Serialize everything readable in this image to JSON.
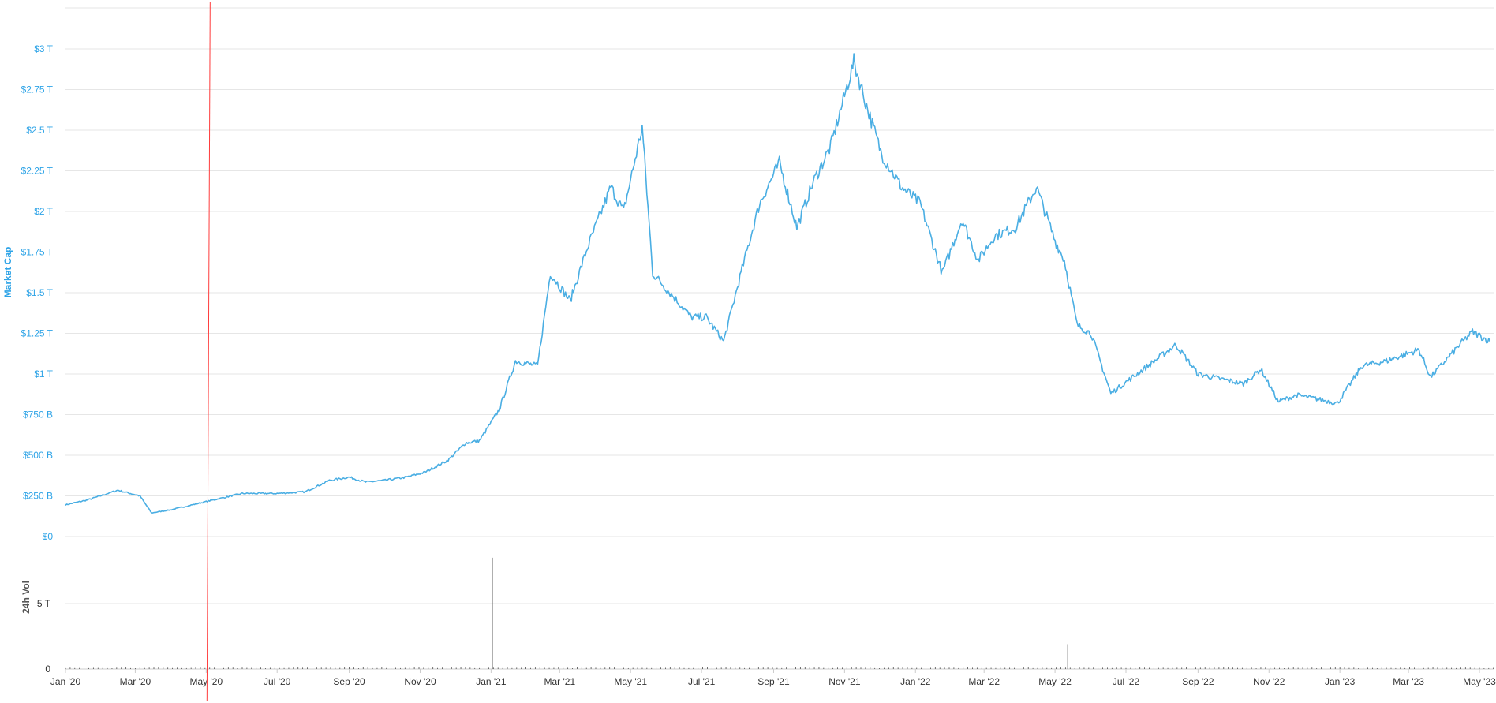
{
  "colors": {
    "market_cap_line": "#4aaee3",
    "volume_bars": "#4a4a4a",
    "gridline": "#e6e6e6",
    "marker_line": "#ff3b3b",
    "ytick_text": "#2fa4e7",
    "xtick_text": "#333333"
  },
  "chart_data": [
    {
      "type": "line",
      "title": "",
      "ylabel": "Market Cap",
      "y_tick_labels": [
        "$0",
        "$250 B",
        "$500 B",
        "$750 B",
        "$1 T",
        "$1.25 T",
        "$1.5 T",
        "$1.75 T",
        "$2 T",
        "$2.25 T",
        "$2.5 T",
        "$2.75 T",
        "$3 T"
      ],
      "y_tick_values": [
        0,
        250,
        500,
        750,
        1000,
        1250,
        1500,
        1750,
        2000,
        2250,
        2500,
        2750,
        3000
      ],
      "y_unit": "billions USD",
      "ylim": [
        0,
        3250
      ],
      "grid": true,
      "series": [
        {
          "x": [
            "2020-01-01",
            "2020-01-20",
            "2020-02-15",
            "2020-03-05",
            "2020-03-15",
            "2020-04-01",
            "2020-05-01",
            "2020-06-01",
            "2020-07-01",
            "2020-07-25",
            "2020-08-15",
            "2020-09-01",
            "2020-09-15",
            "2020-10-01",
            "2020-10-20",
            "2020-11-05",
            "2020-11-25",
            "2020-12-10",
            "2020-12-22",
            "2021-01-08",
            "2021-01-22",
            "2021-02-10",
            "2021-02-21",
            "2021-03-10",
            "2021-03-25",
            "2021-04-14",
            "2021-04-25",
            "2021-05-11",
            "2021-05-20",
            "2021-06-10",
            "2021-06-22",
            "2021-07-05",
            "2021-07-20",
            "2021-08-05",
            "2021-08-20",
            "2021-09-06",
            "2021-09-21",
            "2021-10-05",
            "2021-10-20",
            "2021-11-09",
            "2021-11-20",
            "2021-12-03",
            "2021-12-20",
            "2022-01-05",
            "2022-01-24",
            "2022-02-10",
            "2022-02-24",
            "2022-03-10",
            "2022-03-28",
            "2022-04-15",
            "2022-05-01",
            "2022-05-09",
            "2022-05-20",
            "2022-06-01",
            "2022-06-18",
            "2022-07-01",
            "2022-07-20",
            "2022-08-13",
            "2022-09-01",
            "2022-09-20",
            "2022-10-10",
            "2022-10-25",
            "2022-11-09",
            "2022-11-25",
            "2022-12-10",
            "2022-12-30",
            "2023-01-20",
            "2023-02-10",
            "2023-03-10",
            "2023-03-20",
            "2023-04-14",
            "2023-04-25",
            "2023-05-10"
          ],
          "values": [
            195,
            225,
            285,
            250,
            145,
            165,
            215,
            265,
            265,
            275,
            345,
            365,
            335,
            345,
            365,
            395,
            470,
            575,
            590,
            780,
            1080,
            1050,
            1620,
            1450,
            1780,
            2150,
            2000,
            2520,
            1620,
            1450,
            1350,
            1350,
            1200,
            1650,
            2050,
            2300,
            1900,
            2180,
            2400,
            2920,
            2650,
            2350,
            2150,
            2050,
            1620,
            1950,
            1700,
            1850,
            1900,
            2150,
            1820,
            1700,
            1300,
            1250,
            880,
            950,
            1050,
            1180,
            1000,
            970,
            940,
            1030,
            830,
            870,
            850,
            820,
            1050,
            1080,
            1150,
            980,
            1180,
            1260,
            1200
          ]
        }
      ]
    },
    {
      "type": "bar",
      "title": "",
      "ylabel": "24h Vol",
      "y_tick_labels": [
        "0",
        "5 T"
      ],
      "y_tick_values": [
        0,
        5
      ],
      "y_unit": "trillions USD",
      "ylim": [
        0,
        9
      ],
      "spikes": [
        {
          "x": "2021-01-02",
          "value": 8.5
        },
        {
          "x": "2022-05-12",
          "value": 1.9
        }
      ],
      "baseline_value": 0.1
    }
  ],
  "x_axis": {
    "tick_labels": [
      "Jan '20",
      "Mar '20",
      "May '20",
      "Jul '20",
      "Sep '20",
      "Nov '20",
      "Jan '21",
      "Mar '21",
      "May '21",
      "Jul '21",
      "Sep '21",
      "Nov '21",
      "Jan '22",
      "Mar '22",
      "May '22",
      "Jul '22",
      "Sep '22",
      "Nov '22",
      "Jan '23",
      "Mar '23",
      "May '23"
    ],
    "tick_dates": [
      "2020-01-01",
      "2020-03-01",
      "2020-05-01",
      "2020-07-01",
      "2020-09-01",
      "2020-11-01",
      "2021-01-01",
      "2021-03-01",
      "2021-05-01",
      "2021-07-01",
      "2021-09-01",
      "2021-11-01",
      "2022-01-01",
      "2022-03-01",
      "2022-05-01",
      "2022-07-01",
      "2022-09-01",
      "2022-11-01",
      "2023-01-01",
      "2023-03-01",
      "2023-05-01"
    ],
    "range": [
      "2020-01-01",
      "2023-05-15"
    ]
  },
  "marker": {
    "date": "2020-05-01"
  }
}
